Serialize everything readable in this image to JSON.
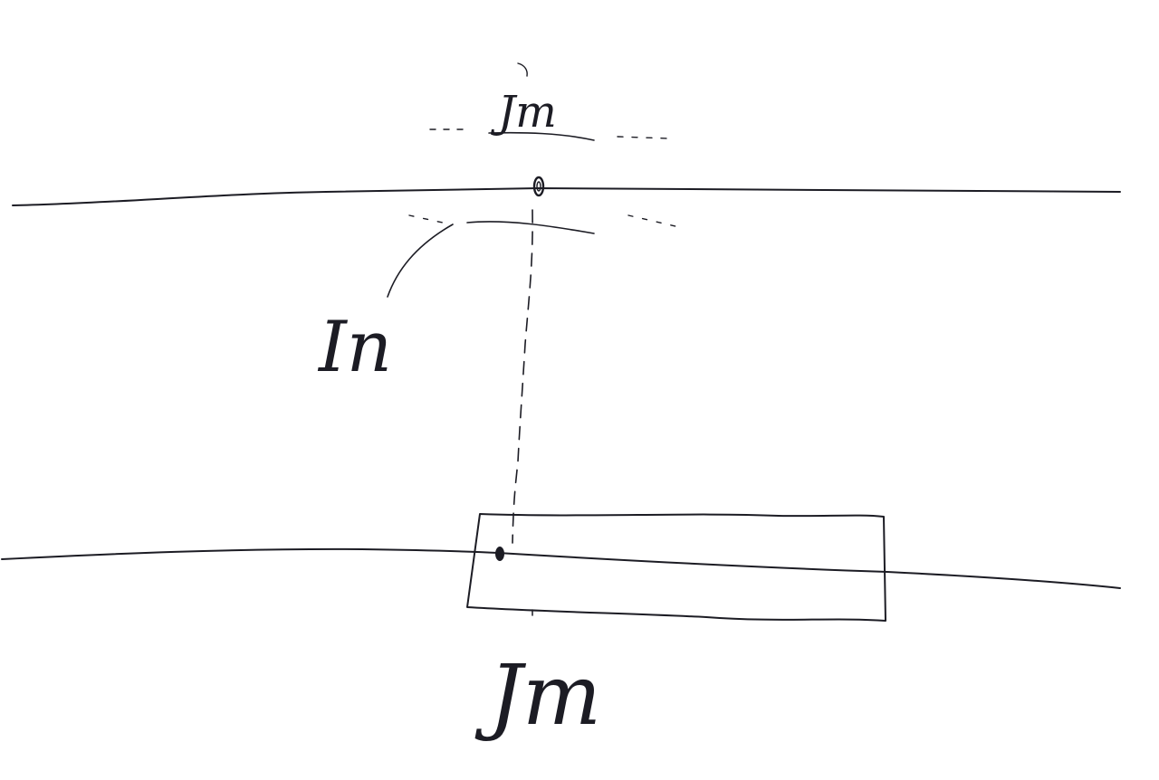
{
  "diagram": {
    "labels": {
      "top": "Jm",
      "middle": "In",
      "bottom": "Jm"
    },
    "colors": {
      "ink": "#1c1c24",
      "background": "#ffffff"
    }
  }
}
